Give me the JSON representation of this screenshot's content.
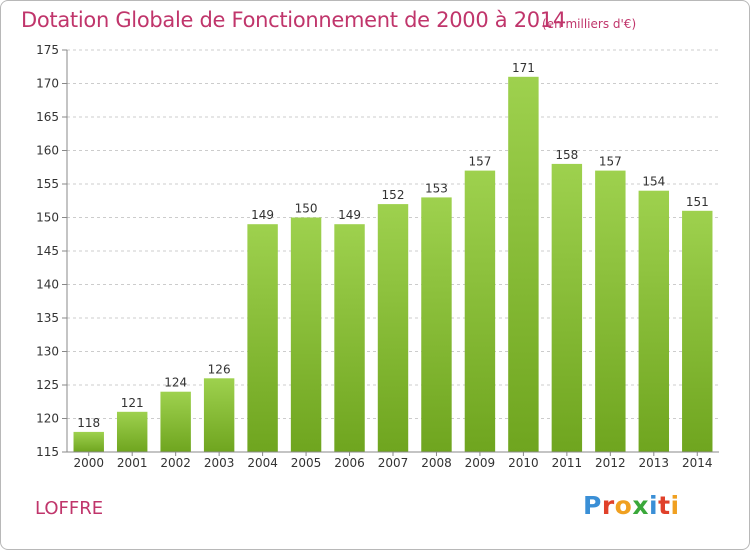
{
  "chart_data": {
    "type": "bar",
    "title": "Dotation Globale de Fonctionnement de 2000 à 2014",
    "subtitle": "(en milliers d'€)",
    "categories": [
      "2000",
      "2001",
      "2002",
      "2003",
      "2004",
      "2005",
      "2006",
      "2007",
      "2008",
      "2009",
      "2010",
      "2011",
      "2012",
      "2013",
      "2014"
    ],
    "values": [
      118,
      121,
      124,
      126,
      149,
      150,
      149,
      152,
      153,
      157,
      171,
      158,
      157,
      154,
      151
    ],
    "ylim": [
      115,
      175
    ],
    "yticks": [
      115,
      120,
      125,
      130,
      135,
      140,
      145,
      150,
      155,
      160,
      165,
      170,
      175
    ],
    "grid": true,
    "bar_color_top": "#9ed14e",
    "bar_color_bottom": "#6fa51f"
  },
  "footer": {
    "commune": "LOFFRE",
    "logo_letters": [
      "P",
      "r",
      "o",
      "x",
      "i",
      "t",
      "i"
    ],
    "logo_colors": [
      "#3a8fd6",
      "#e0402a",
      "#f0a020",
      "#3aa83a",
      "#3a8fd6",
      "#e0402a",
      "#f0a020"
    ]
  },
  "colors": {
    "title": "#c0356b",
    "grid": "#cccccc"
  }
}
